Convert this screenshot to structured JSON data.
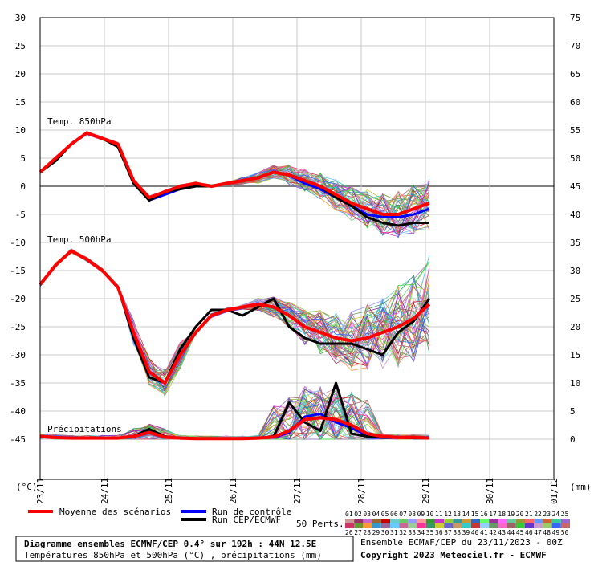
{
  "chart_data": {
    "type": "line",
    "x_ticks": [
      "23/11",
      "24/11",
      "25/11",
      "26/11",
      "27/11",
      "28/11",
      "29/11",
      "30/11",
      "01/12"
    ],
    "x_step_hours": 6,
    "left_axis": {
      "unit_label": "(°C)",
      "min": -45,
      "max": 30,
      "ticks": [
        30,
        25,
        20,
        15,
        10,
        5,
        0,
        -5,
        -10,
        -15,
        -20,
        -25,
        -30,
        -35,
        -40,
        -45
      ]
    },
    "right_axis": {
      "unit_label": "(mm)",
      "min": 0,
      "max": 75,
      "ticks": [
        75,
        70,
        65,
        60,
        55,
        50,
        45,
        40,
        35,
        30,
        25,
        20,
        15,
        10,
        5,
        0
      ]
    },
    "grid": true,
    "annotations": [
      "Temp. 850hPa",
      "Temp. 500hPa",
      "Précipitations"
    ],
    "t850": {
      "mean": [
        2.5,
        5,
        7.5,
        9.5,
        8.5,
        7.5,
        1,
        -2,
        -1,
        0,
        0.5,
        0,
        0.5,
        1,
        1.5,
        2.5,
        2,
        1,
        0,
        -1.5,
        -3,
        -4,
        -5,
        -5,
        -4,
        -3
      ],
      "control": [
        2.5,
        5,
        7.5,
        9.5,
        8.5,
        7.5,
        1,
        -2.5,
        -1.5,
        -0.5,
        0,
        0,
        0.5,
        1,
        1.5,
        2.5,
        2,
        0.5,
        -0.5,
        -2,
        -3.5,
        -5,
        -5.5,
        -5.5,
        -5,
        -4
      ],
      "ecmwf": [
        2.5,
        4.5,
        7.5,
        9.5,
        8.5,
        7,
        0.5,
        -2.5,
        -1,
        -0.5,
        0,
        0,
        0.5,
        1,
        1.5,
        2.5,
        2,
        1,
        0,
        -2,
        -3.5,
        -5.5,
        -6.5,
        -7,
        -6.5,
        -6.5
      ]
    },
    "t500": {
      "mean": [
        -17.5,
        -14,
        -11.5,
        -13,
        -15,
        -18,
        -26,
        -33,
        -35,
        -30,
        -26,
        -23,
        -22,
        -21.5,
        -21,
        -21.5,
        -23,
        -25,
        -26,
        -27,
        -27.5,
        -27,
        -26,
        -25,
        -23.5,
        -21
      ],
      "control": [
        -17.5,
        -14,
        -11.5,
        -13,
        -15,
        -18,
        -26,
        -33,
        -35,
        -30,
        -26,
        -23,
        -22,
        -21.5,
        -21,
        -21.5,
        -23,
        -25,
        -26,
        -27,
        -27.5,
        -27,
        -26,
        -25,
        -23.5,
        -21
      ],
      "ecmwf": [
        -17.5,
        -14,
        -11.5,
        -13,
        -15,
        -18,
        -27,
        -34,
        -35,
        -29,
        -25,
        -22,
        -22,
        -23,
        -21.5,
        -20,
        -25,
        -27,
        -28,
        -28,
        -28,
        -29,
        -30,
        -26,
        -24,
        -20
      ]
    },
    "precip_mm": {
      "mean": [
        0.5,
        0.3,
        0.2,
        0.2,
        0.2,
        0.2,
        0.5,
        1.2,
        0.4,
        0.2,
        0.1,
        0.1,
        0.1,
        0.1,
        0.2,
        0.4,
        1.5,
        3.5,
        3.8,
        3.5,
        2.5,
        1,
        0.5,
        0.3,
        0.3,
        0.2
      ],
      "control": [
        0.5,
        0.3,
        0.2,
        0.2,
        0.2,
        0.2,
        0.6,
        1.5,
        0.5,
        0.2,
        0.1,
        0.1,
        0.1,
        0.1,
        0.2,
        0.3,
        1.2,
        4,
        4.5,
        3,
        2,
        0.7,
        0.4,
        0.3,
        0.2,
        0.2
      ],
      "ecmwf": [
        0.5,
        0.3,
        0.2,
        0.2,
        0.2,
        0.2,
        0.5,
        1.8,
        0.5,
        0.2,
        0.1,
        0.1,
        0.1,
        0.1,
        0.2,
        0.5,
        6.5,
        3,
        1.5,
        10,
        1,
        0.5,
        0.3,
        0.3,
        0.2,
        0.2
      ]
    },
    "series_colors": {
      "mean": "#ff0000",
      "control": "#0000ff",
      "ecmwf": "#000000"
    }
  },
  "legend": {
    "mean": "Moyenne des scénarios",
    "control": "Run de contrôle",
    "ecmwf": "Run CEP/ECMWF",
    "perts_label": "50 Perts.",
    "perts_top": [
      "01",
      "02",
      "03",
      "04",
      "05",
      "06",
      "07",
      "08",
      "09",
      "10",
      "11",
      "12",
      "13",
      "14",
      "15",
      "16",
      "17",
      "18",
      "19",
      "20",
      "21",
      "22",
      "23",
      "24",
      "25"
    ],
    "perts_bottom": [
      "26",
      "27",
      "28",
      "29",
      "30",
      "31",
      "32",
      "33",
      "34",
      "35",
      "36",
      "37",
      "38",
      "39",
      "40",
      "41",
      "42",
      "43",
      "44",
      "45",
      "46",
      "47",
      "48",
      "49",
      "50"
    ],
    "perts_colors": [
      "#cc9999",
      "#993366",
      "#cc66cc",
      "#996633",
      "#cc0000",
      "#66cccc",
      "#66cc66",
      "#9999ff",
      "#ff9999",
      "#339933",
      "#cc33cc",
      "#99cc33",
      "#339999",
      "#cc9933",
      "#3366cc",
      "#66ff66",
      "#993399",
      "#ff66ff",
      "#66cc99",
      "#999933",
      "#ff6666",
      "#6699ff",
      "#cc6633",
      "#33cc99",
      "#9966cc",
      "#cc3366",
      "#669933",
      "#ff9933",
      "#3399cc",
      "#996699",
      "#66ccff",
      "#cc6699",
      "#99cc99",
      "#ff3399",
      "#339966",
      "#cccc33",
      "#6666cc",
      "#cc9966",
      "#33cccc",
      "#cc3333",
      "#99ccff",
      "#669966",
      "#ff66cc",
      "#996666",
      "#33cc33",
      "#6633cc",
      "#cc99cc",
      "#99cc66",
      "#3366ff",
      "#cc6666"
    ]
  },
  "info_box": {
    "title": "Diagramme ensembles ECMWF/CEP 0.4° sur 192h : 44N 12.5E",
    "subtitle": "Températures 850hPa et 500hPa (°C) , précipitations (mm)"
  },
  "footer": {
    "run": "Ensemble ECMWF/CEP du 23/11/2023 - 00Z",
    "copyright": "Copyright 2023 Meteociel.fr - ECMWF"
  }
}
